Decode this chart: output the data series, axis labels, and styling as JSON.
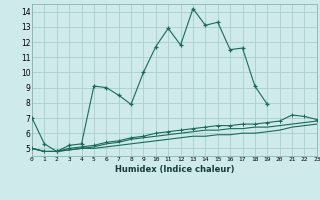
{
  "xlabel": "Humidex (Indice chaleur)",
  "ylabel": "",
  "bg_color": "#ceeaea",
  "grid_color": "#aacece",
  "line_color": "#1a6a5a",
  "x_values": [
    0,
    1,
    2,
    3,
    4,
    5,
    6,
    7,
    8,
    9,
    10,
    11,
    12,
    13,
    14,
    15,
    16,
    17,
    18,
    19,
    20,
    21,
    22,
    23
  ],
  "series1": [
    7.0,
    5.3,
    4.8,
    5.2,
    5.3,
    9.1,
    9.0,
    8.5,
    7.9,
    10.0,
    11.7,
    12.9,
    11.8,
    14.2,
    13.1,
    13.3,
    11.5,
    11.6,
    9.1,
    7.9,
    null,
    null,
    null,
    null
  ],
  "series2": [
    5.0,
    4.8,
    4.8,
    5.0,
    5.1,
    5.2,
    5.4,
    5.5,
    5.7,
    5.8,
    6.0,
    6.1,
    6.2,
    6.3,
    6.4,
    6.5,
    6.5,
    6.6,
    6.6,
    6.7,
    6.8,
    7.2,
    7.1,
    6.9
  ],
  "series3": [
    5.0,
    4.8,
    4.8,
    4.9,
    5.0,
    5.1,
    5.3,
    5.4,
    5.6,
    5.7,
    5.8,
    5.9,
    6.0,
    6.1,
    6.2,
    6.2,
    6.3,
    6.3,
    6.4,
    6.4,
    6.5,
    6.6,
    6.7,
    6.8
  ],
  "series4": [
    5.0,
    4.8,
    4.8,
    4.9,
    5.0,
    5.0,
    5.1,
    5.2,
    5.3,
    5.4,
    5.5,
    5.6,
    5.7,
    5.8,
    5.8,
    5.9,
    5.9,
    6.0,
    6.0,
    6.1,
    6.2,
    6.4,
    6.5,
    6.6
  ],
  "xlim": [
    0,
    23
  ],
  "ylim": [
    4.5,
    14.5
  ],
  "yticks": [
    5,
    6,
    7,
    8,
    9,
    10,
    11,
    12,
    13,
    14
  ],
  "xtick_labels": [
    "0",
    "1",
    "2",
    "3",
    "4",
    "5",
    "6",
    "7",
    "8",
    "9",
    "10",
    "11",
    "12",
    "13",
    "14",
    "15",
    "16",
    "17",
    "18",
    "19",
    "20",
    "21",
    "22",
    "23"
  ]
}
